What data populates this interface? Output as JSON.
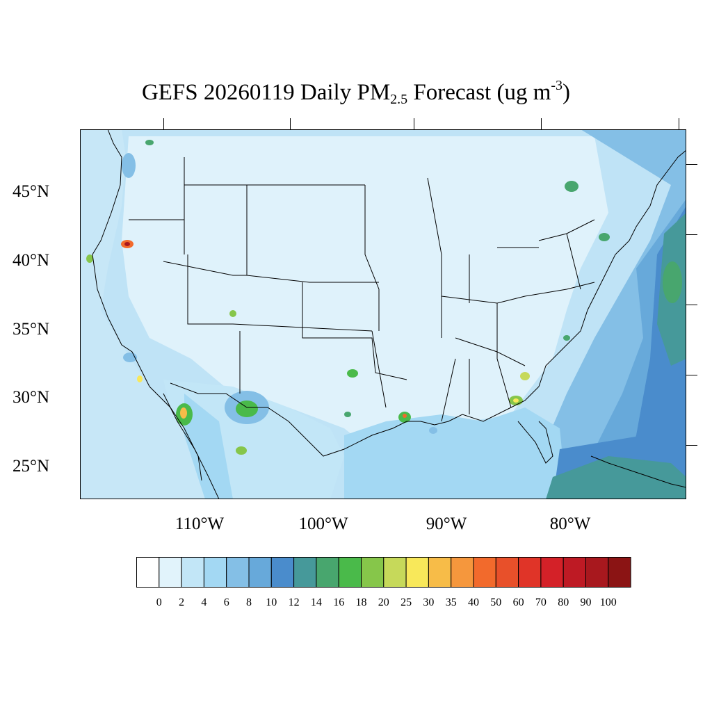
{
  "title": {
    "prefix": "GEFS 20260119 Daily PM",
    "subscript": "2.5",
    "middle": " Forecast (ug m",
    "superscript": "-3",
    "suffix": ")"
  },
  "axes": {
    "lat_labels": [
      "45°N",
      "40°N",
      "35°N",
      "30°N",
      "25°N"
    ],
    "lon_labels": [
      "110°W",
      "100°W",
      "90°W",
      "80°W"
    ]
  },
  "colorbar": {
    "levels": [
      "0",
      "2",
      "4",
      "6",
      "8",
      "10",
      "12",
      "14",
      "16",
      "18",
      "20",
      "25",
      "30",
      "35",
      "40",
      "50",
      "60",
      "70",
      "80",
      "90",
      "100"
    ],
    "colors": [
      "#ffffff",
      "#e1f3fb",
      "#c2e6f7",
      "#a3d8f3",
      "#84bfe6",
      "#67a9da",
      "#4a8ccc",
      "#46999a",
      "#48a66e",
      "#4aba4a",
      "#86c64a",
      "#c6d95a",
      "#f8e85a",
      "#f7bc48",
      "#f5973d",
      "#f26a2c",
      "#e8502a",
      "#e03428",
      "#d42128",
      "#be1a24",
      "#a8181e",
      "#8b1414"
    ]
  },
  "background": {
    "land": "#d6eef9",
    "ocean": "#a9d9f2",
    "atlantic": "#5a9bd5"
  }
}
